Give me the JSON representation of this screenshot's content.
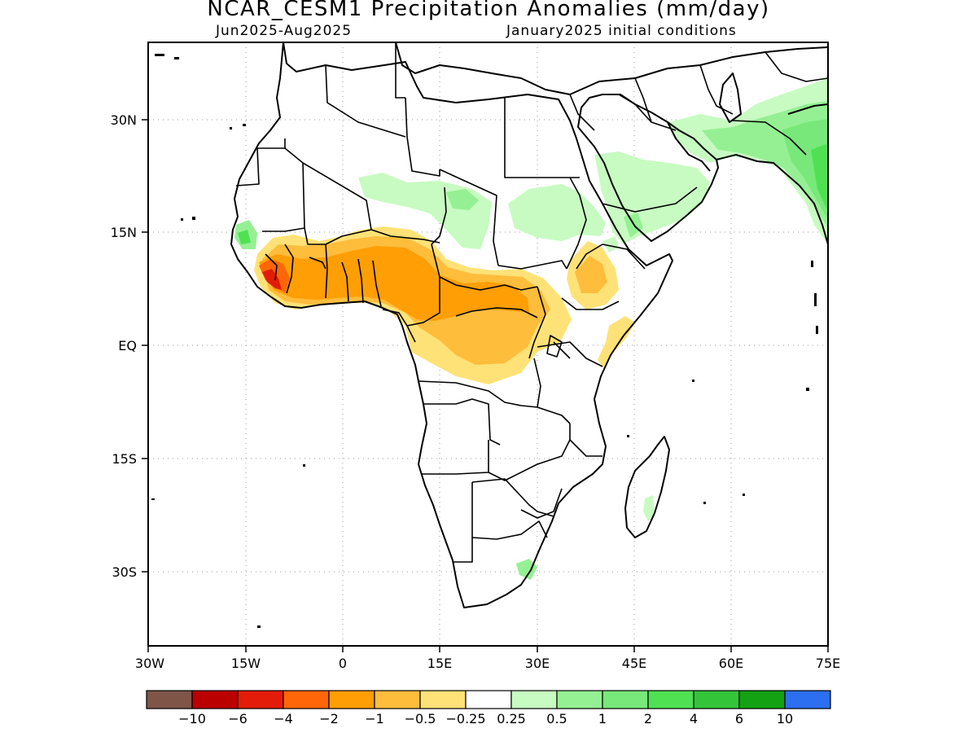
{
  "title": "NCAR_CESM1 Precipitation Anomalies (mm/day)",
  "subtitle_left": "Jun2025-Aug2025",
  "subtitle_right": "January2025 initial conditions",
  "map": {
    "x_ticks": [
      "30W",
      "15W",
      "0",
      "15E",
      "30E",
      "45E",
      "60E",
      "75E"
    ],
    "y_ticks": [
      "30N",
      "15N",
      "EQ",
      "15S",
      "30S"
    ]
  },
  "colorbar": {
    "colors": [
      "#7f5548",
      "#bb0000",
      "#e21c09",
      "#ff6608",
      "#ff9e05",
      "#ffbd3c",
      "#ffe277",
      "#ffffff",
      "#c7fbc1",
      "#95f093",
      "#78e87a",
      "#50e153",
      "#34c43a",
      "#12a212",
      "#2c6ff0"
    ],
    "labels": [
      "-10",
      "-6",
      "-4",
      "-2",
      "-1",
      "-0.5",
      "-0.25",
      "0.25",
      "0.5",
      "1",
      "2",
      "4",
      "6",
      "10"
    ]
  }
}
